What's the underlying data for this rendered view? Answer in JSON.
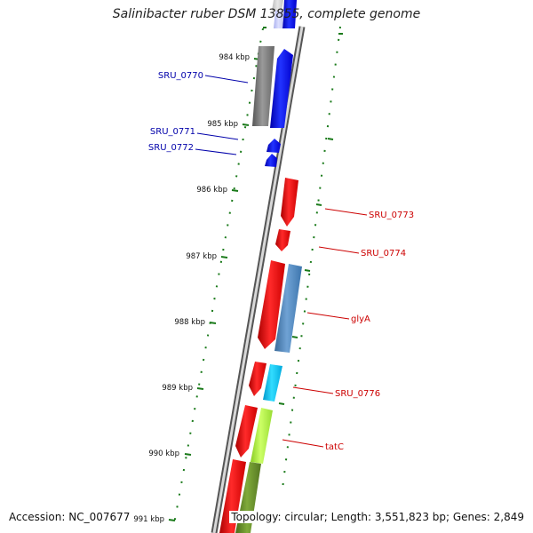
{
  "title": "Salinibacter ruber DSM 13855, complete genome",
  "footer": {
    "accession": "Accession: NC_007677",
    "summary": "Topology: circular; Length: 3,551,823 bp; Genes: 2,849"
  },
  "ticks": [
    "984 kbp",
    "985 kbp",
    "986 kbp",
    "987 kbp",
    "988 kbp",
    "989 kbp",
    "990 kbp",
    "991 kbp"
  ],
  "colors": {
    "backbone": "#8a8a8a",
    "tick_mark": "#1a7a1a",
    "reverse_label": "#0000aa",
    "forward_label": "#cc0000"
  },
  "genes": [
    {
      "label": "SRU_0770",
      "strand": "reverse",
      "color": "#0000ee"
    },
    {
      "label": "SRU_0771",
      "strand": "reverse",
      "color": "#0000ee"
    },
    {
      "label": "SRU_0772",
      "strand": "reverse",
      "color": "#0000ee"
    },
    {
      "label": "SRU_0773",
      "strand": "forward",
      "color": "#ee0000"
    },
    {
      "label": "SRU_0774",
      "strand": "forward",
      "color": "#ee0000"
    },
    {
      "label": "glyA",
      "strand": "forward",
      "color": "#ee0000"
    },
    {
      "label": "SRU_0776",
      "strand": "forward",
      "color": "#ee0000"
    },
    {
      "label": "tatC",
      "strand": "forward",
      "color": "#ee0000"
    }
  ]
}
